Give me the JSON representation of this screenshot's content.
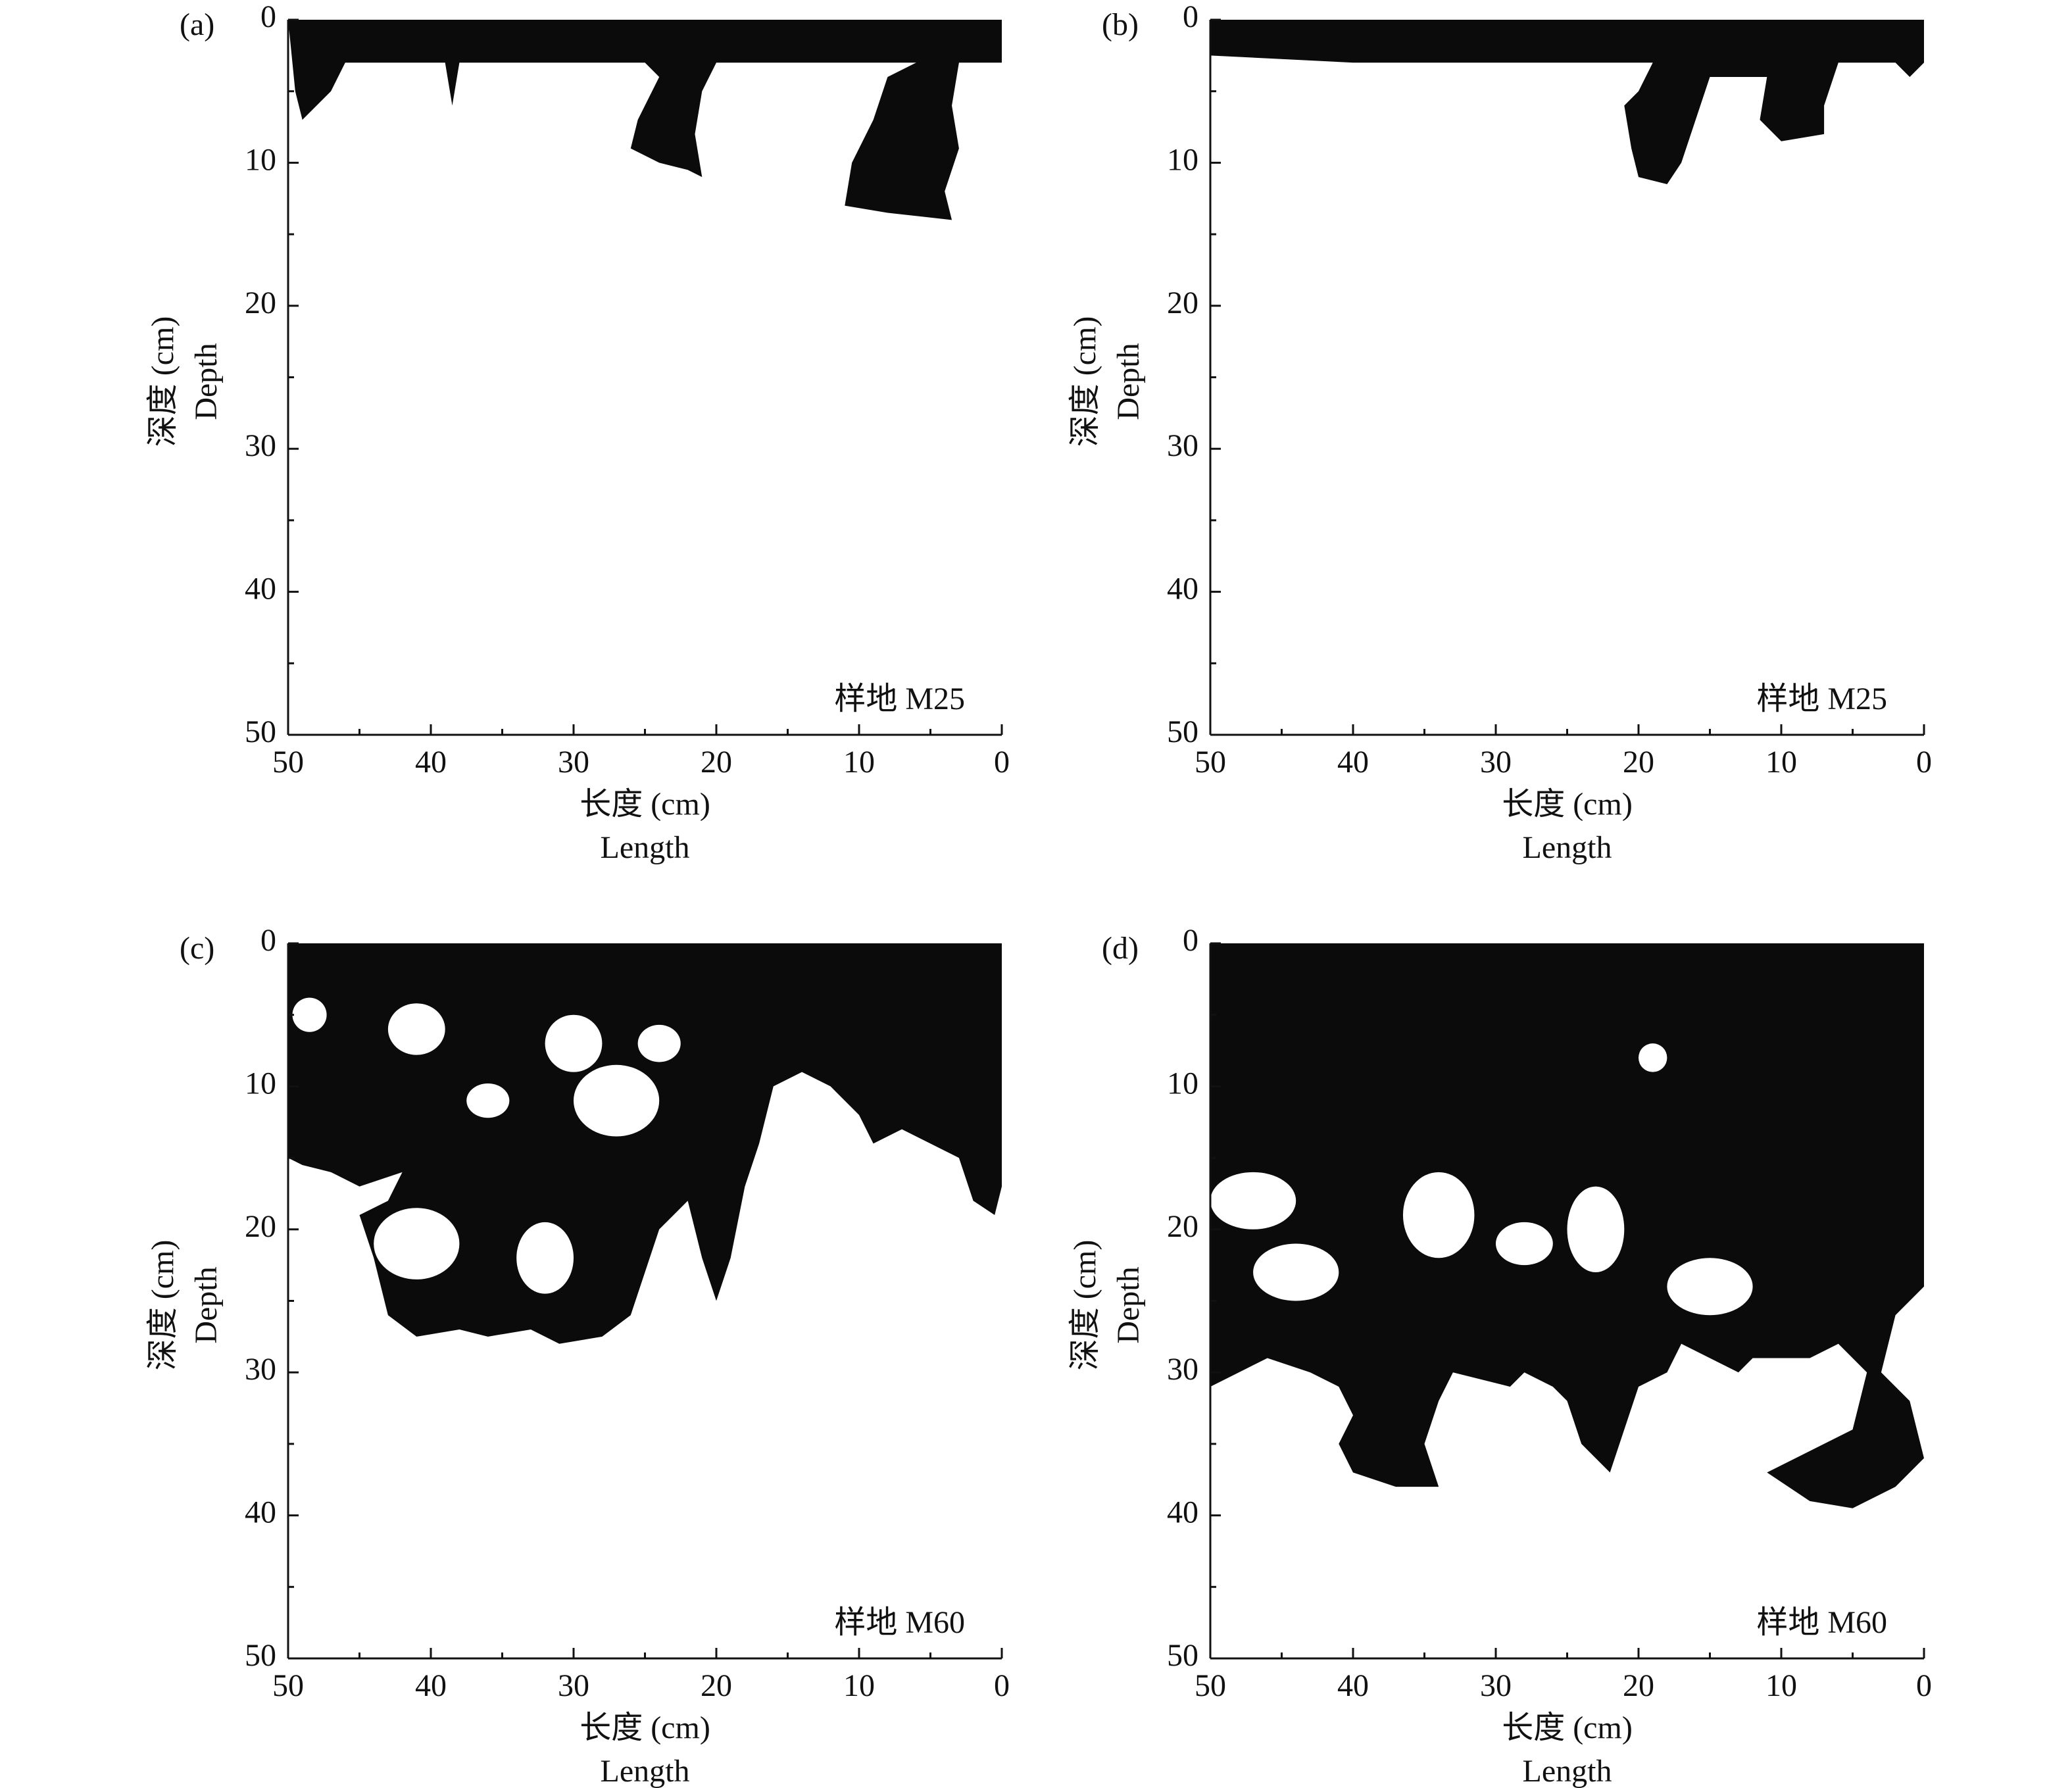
{
  "chart_data": [
    {
      "type": "image",
      "panel_label": "(a)",
      "annotation": "样地 M25",
      "xlabel": "长度 (cm)",
      "xlabel_en": "Length",
      "ylabel": "深度 (cm)",
      "ylabel_en": "Depth",
      "xlim": [
        50,
        0
      ],
      "xticks": [
        50,
        40,
        30,
        20,
        10,
        0
      ],
      "ylim": [
        50,
        0
      ],
      "yticks": [
        0,
        10,
        20,
        30,
        40,
        50
      ]
    },
    {
      "type": "image",
      "panel_label": "(b)",
      "annotation": "样地 M25",
      "xlabel": "长度 (cm)",
      "xlabel_en": "Length",
      "ylabel": "深度 (cm)",
      "ylabel_en": "Depth",
      "xlim": [
        50,
        0
      ],
      "xticks": [
        50,
        40,
        30,
        20,
        10,
        0
      ],
      "ylim": [
        50,
        0
      ],
      "yticks": [
        0,
        10,
        20,
        30,
        40,
        50
      ]
    },
    {
      "type": "image",
      "panel_label": "(c)",
      "annotation": "样地 M60",
      "xlabel": "长度 (cm)",
      "xlabel_en": "Length",
      "ylabel": "深度 (cm)",
      "ylabel_en": "Depth",
      "xlim": [
        50,
        0
      ],
      "xticks": [
        50,
        40,
        30,
        20,
        10,
        0
      ],
      "ylim": [
        50,
        0
      ],
      "yticks": [
        0,
        10,
        20,
        30,
        40,
        50
      ]
    },
    {
      "type": "image",
      "panel_label": "(d)",
      "annotation": "样地 M60",
      "xlabel": "长度 (cm)",
      "xlabel_en": "Length",
      "ylabel": "深度 (cm)",
      "ylabel_en": "Depth",
      "xlim": [
        50,
        0
      ],
      "xticks": [
        50,
        40,
        30,
        20,
        10,
        0
      ],
      "ylim": [
        50,
        0
      ],
      "yticks": [
        0,
        10,
        20,
        30,
        40,
        50
      ]
    }
  ]
}
